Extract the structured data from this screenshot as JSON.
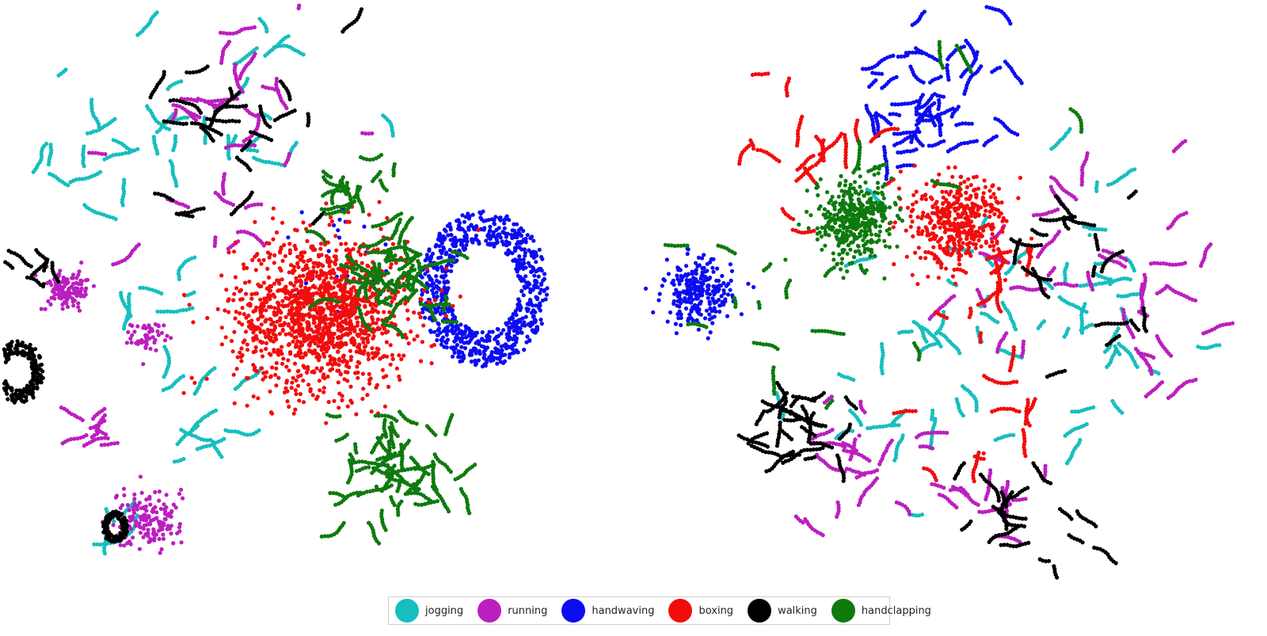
{
  "chart_data": [
    {
      "type": "scatter",
      "panel": "left",
      "grid": false,
      "axes_visible": false,
      "legend_position": "bottom-center",
      "series": [
        {
          "name": "jogging",
          "color": "#17bebf",
          "clusters": [
            {
              "cx": -0.35,
              "cy": 0.78,
              "spread": 0.35,
              "count": 200,
              "segment": true
            },
            {
              "cx": -0.8,
              "cy": 0.55,
              "spread": 0.15,
              "count": 90,
              "segment": true
            },
            {
              "cx": -0.42,
              "cy": -0.45,
              "spread": 0.18,
              "count": 110,
              "segment": true
            },
            {
              "cx": -0.72,
              "cy": -0.95,
              "spread": 0.08,
              "count": 40,
              "segment": true
            },
            {
              "cx": -0.6,
              "cy": 0.05,
              "spread": 0.18,
              "count": 60,
              "segment": true
            }
          ]
        },
        {
          "name": "running",
          "color": "#bb1fbf",
          "clusters": [
            {
              "cx": -0.35,
              "cy": 0.7,
              "spread": 0.38,
              "count": 220,
              "segment": true
            },
            {
              "cx": -0.9,
              "cy": 0.05,
              "spread": 0.08,
              "count": 130,
              "segment": false
            },
            {
              "cx": -0.6,
              "cy": -0.92,
              "spread": 0.12,
              "count": 160,
              "segment": false
            },
            {
              "cx": -0.78,
              "cy": -0.55,
              "spread": 0.08,
              "count": 60,
              "segment": true
            },
            {
              "cx": -0.6,
              "cy": -0.15,
              "spread": 0.06,
              "count": 50,
              "segment": false
            }
          ]
        },
        {
          "name": "handwaving",
          "color": "#0c0cf2",
          "clusters": [
            {
              "cx": 0.65,
              "cy": 0.05,
              "spread": 0.3,
              "count": 800,
              "ring": true
            },
            {
              "cx": 0.12,
              "cy": 0.18,
              "spread": 0.25,
              "count": 25,
              "segment": false
            }
          ]
        },
        {
          "name": "boxing",
          "color": "#f20d0d",
          "clusters": [
            {
              "cx": 0.05,
              "cy": -0.05,
              "spread": 0.32,
              "count": 1400,
              "segment": false
            }
          ]
        },
        {
          "name": "walking",
          "color": "#000000",
          "clusters": [
            {
              "cx": -0.35,
              "cy": 0.7,
              "spread": 0.38,
              "count": 200,
              "segment": true
            },
            {
              "cx": -1.08,
              "cy": -0.3,
              "spread": 0.12,
              "count": 260,
              "ring": true
            },
            {
              "cx": -0.72,
              "cy": -0.95,
              "spread": 0.06,
              "count": 120,
              "ring": true
            },
            {
              "cx": -1.0,
              "cy": 0.15,
              "spread": 0.06,
              "count": 50,
              "segment": true
            }
          ]
        },
        {
          "name": "handclapping",
          "color": "#0e7a0e",
          "clusters": [
            {
              "cx": 0.33,
              "cy": 0.1,
              "spread": 0.15,
              "count": 350,
              "segment": true
            },
            {
              "cx": 0.3,
              "cy": -0.7,
              "spread": 0.18,
              "count": 380,
              "segment": true
            },
            {
              "cx": 0.18,
              "cy": 0.45,
              "spread": 0.15,
              "count": 120,
              "segment": true
            }
          ]
        }
      ]
    },
    {
      "type": "scatter",
      "panel": "right",
      "grid": false,
      "axes_visible": false,
      "series": [
        {
          "name": "jogging",
          "color": "#17bebf",
          "clusters": [
            {
              "cx": 0.45,
              "cy": 0.05,
              "spread": 0.5,
              "count": 330,
              "segment": true
            },
            {
              "cx": -0.2,
              "cy": -0.4,
              "spread": 0.3,
              "count": 140,
              "segment": true
            }
          ]
        },
        {
          "name": "running",
          "color": "#bb1fbf",
          "clusters": [
            {
              "cx": 0.55,
              "cy": 0.05,
              "spread": 0.5,
              "count": 300,
              "segment": true
            },
            {
              "cx": -0.35,
              "cy": -0.55,
              "spread": 0.3,
              "count": 150,
              "segment": true
            },
            {
              "cx": 0.15,
              "cy": -0.8,
              "spread": 0.15,
              "count": 90,
              "segment": true
            }
          ]
        },
        {
          "name": "handwaving",
          "color": "#0c0cf2",
          "clusters": [
            {
              "cx": -0.1,
              "cy": 0.82,
              "spread": 0.18,
              "count": 300,
              "segment": true
            },
            {
              "cx": -0.95,
              "cy": 0.05,
              "spread": 0.13,
              "count": 260,
              "segment": false
            },
            {
              "cx": 0.1,
              "cy": 0.9,
              "spread": 0.3,
              "count": 50,
              "segment": true
            }
          ]
        },
        {
          "name": "boxing",
          "color": "#f20d0d",
          "clusters": [
            {
              "cx": 0.05,
              "cy": 0.35,
              "spread": 0.18,
              "count": 420,
              "segment": false
            },
            {
              "cx": -0.55,
              "cy": 0.55,
              "spread": 0.25,
              "count": 150,
              "segment": true
            },
            {
              "cx": 0.2,
              "cy": 0.05,
              "spread": 0.2,
              "count": 120,
              "segment": true
            },
            {
              "cx": 0.15,
              "cy": -0.55,
              "spread": 0.25,
              "count": 80,
              "segment": true
            }
          ]
        },
        {
          "name": "walking",
          "color": "#000000",
          "clusters": [
            {
              "cx": -0.55,
              "cy": -0.5,
              "spread": 0.15,
              "count": 230,
              "segment": true
            },
            {
              "cx": 0.3,
              "cy": -0.85,
              "spread": 0.2,
              "count": 160,
              "segment": true
            },
            {
              "cx": 0.55,
              "cy": 0.15,
              "spread": 0.35,
              "count": 150,
              "segment": true
            }
          ]
        },
        {
          "name": "handclapping",
          "color": "#0e7a0e",
          "clusters": [
            {
              "cx": -0.35,
              "cy": 0.35,
              "spread": 0.15,
              "count": 420,
              "segment": false
            },
            {
              "cx": -0.55,
              "cy": 0.0,
              "spread": 0.35,
              "count": 90,
              "segment": true
            },
            {
              "cx": 0.0,
              "cy": 0.8,
              "spread": 0.3,
              "count": 60,
              "segment": true
            }
          ]
        }
      ]
    }
  ],
  "legend": {
    "items": [
      {
        "label": "jogging",
        "color": "#17bebf"
      },
      {
        "label": "running",
        "color": "#bb1fbf"
      },
      {
        "label": "handwaving",
        "color": "#0c0cf2"
      },
      {
        "label": "boxing",
        "color": "#f20d0d"
      },
      {
        "label": "walking",
        "color": "#000000"
      },
      {
        "label": "handclapping",
        "color": "#0e7a0e"
      }
    ]
  }
}
